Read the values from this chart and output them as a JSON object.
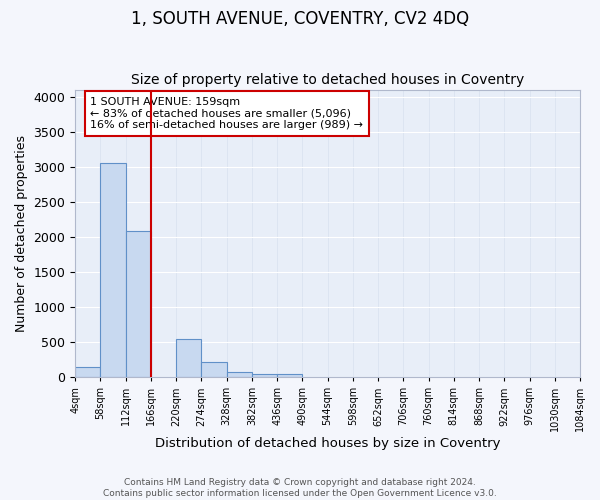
{
  "title": "1, SOUTH AVENUE, COVENTRY, CV2 4DQ",
  "subtitle": "Size of property relative to detached houses in Coventry",
  "xlabel": "Distribution of detached houses by size in Coventry",
  "ylabel": "Number of detached properties",
  "bin_edges": [
    4,
    58,
    112,
    166,
    220,
    274,
    328,
    382,
    436,
    490,
    544,
    598,
    652,
    706,
    760,
    814,
    868,
    922,
    976,
    1030,
    1084
  ],
  "bar_heights": [
    150,
    3050,
    2080,
    0,
    545,
    210,
    70,
    50,
    50,
    0,
    0,
    0,
    0,
    0,
    0,
    0,
    0,
    0,
    0,
    0
  ],
  "bar_color": "#c8d9f0",
  "bar_edge_color": "#6090c8",
  "red_line_x": 166,
  "annotation_text": "1 SOUTH AVENUE: 159sqm\n← 83% of detached houses are smaller (5,096)\n16% of semi-detached houses are larger (989) →",
  "annotation_box_color": "#ffffff",
  "annotation_box_edge_color": "#cc0000",
  "ylim": [
    0,
    4100
  ],
  "yticks": [
    0,
    500,
    1000,
    1500,
    2000,
    2500,
    3000,
    3500,
    4000
  ],
  "background_color": "#e8eef8",
  "grid_color": "#d0d8e8",
  "title_fontsize": 12,
  "subtitle_fontsize": 10,
  "footer_text": "Contains HM Land Registry data © Crown copyright and database right 2024.\nContains public sector information licensed under the Open Government Licence v3.0."
}
